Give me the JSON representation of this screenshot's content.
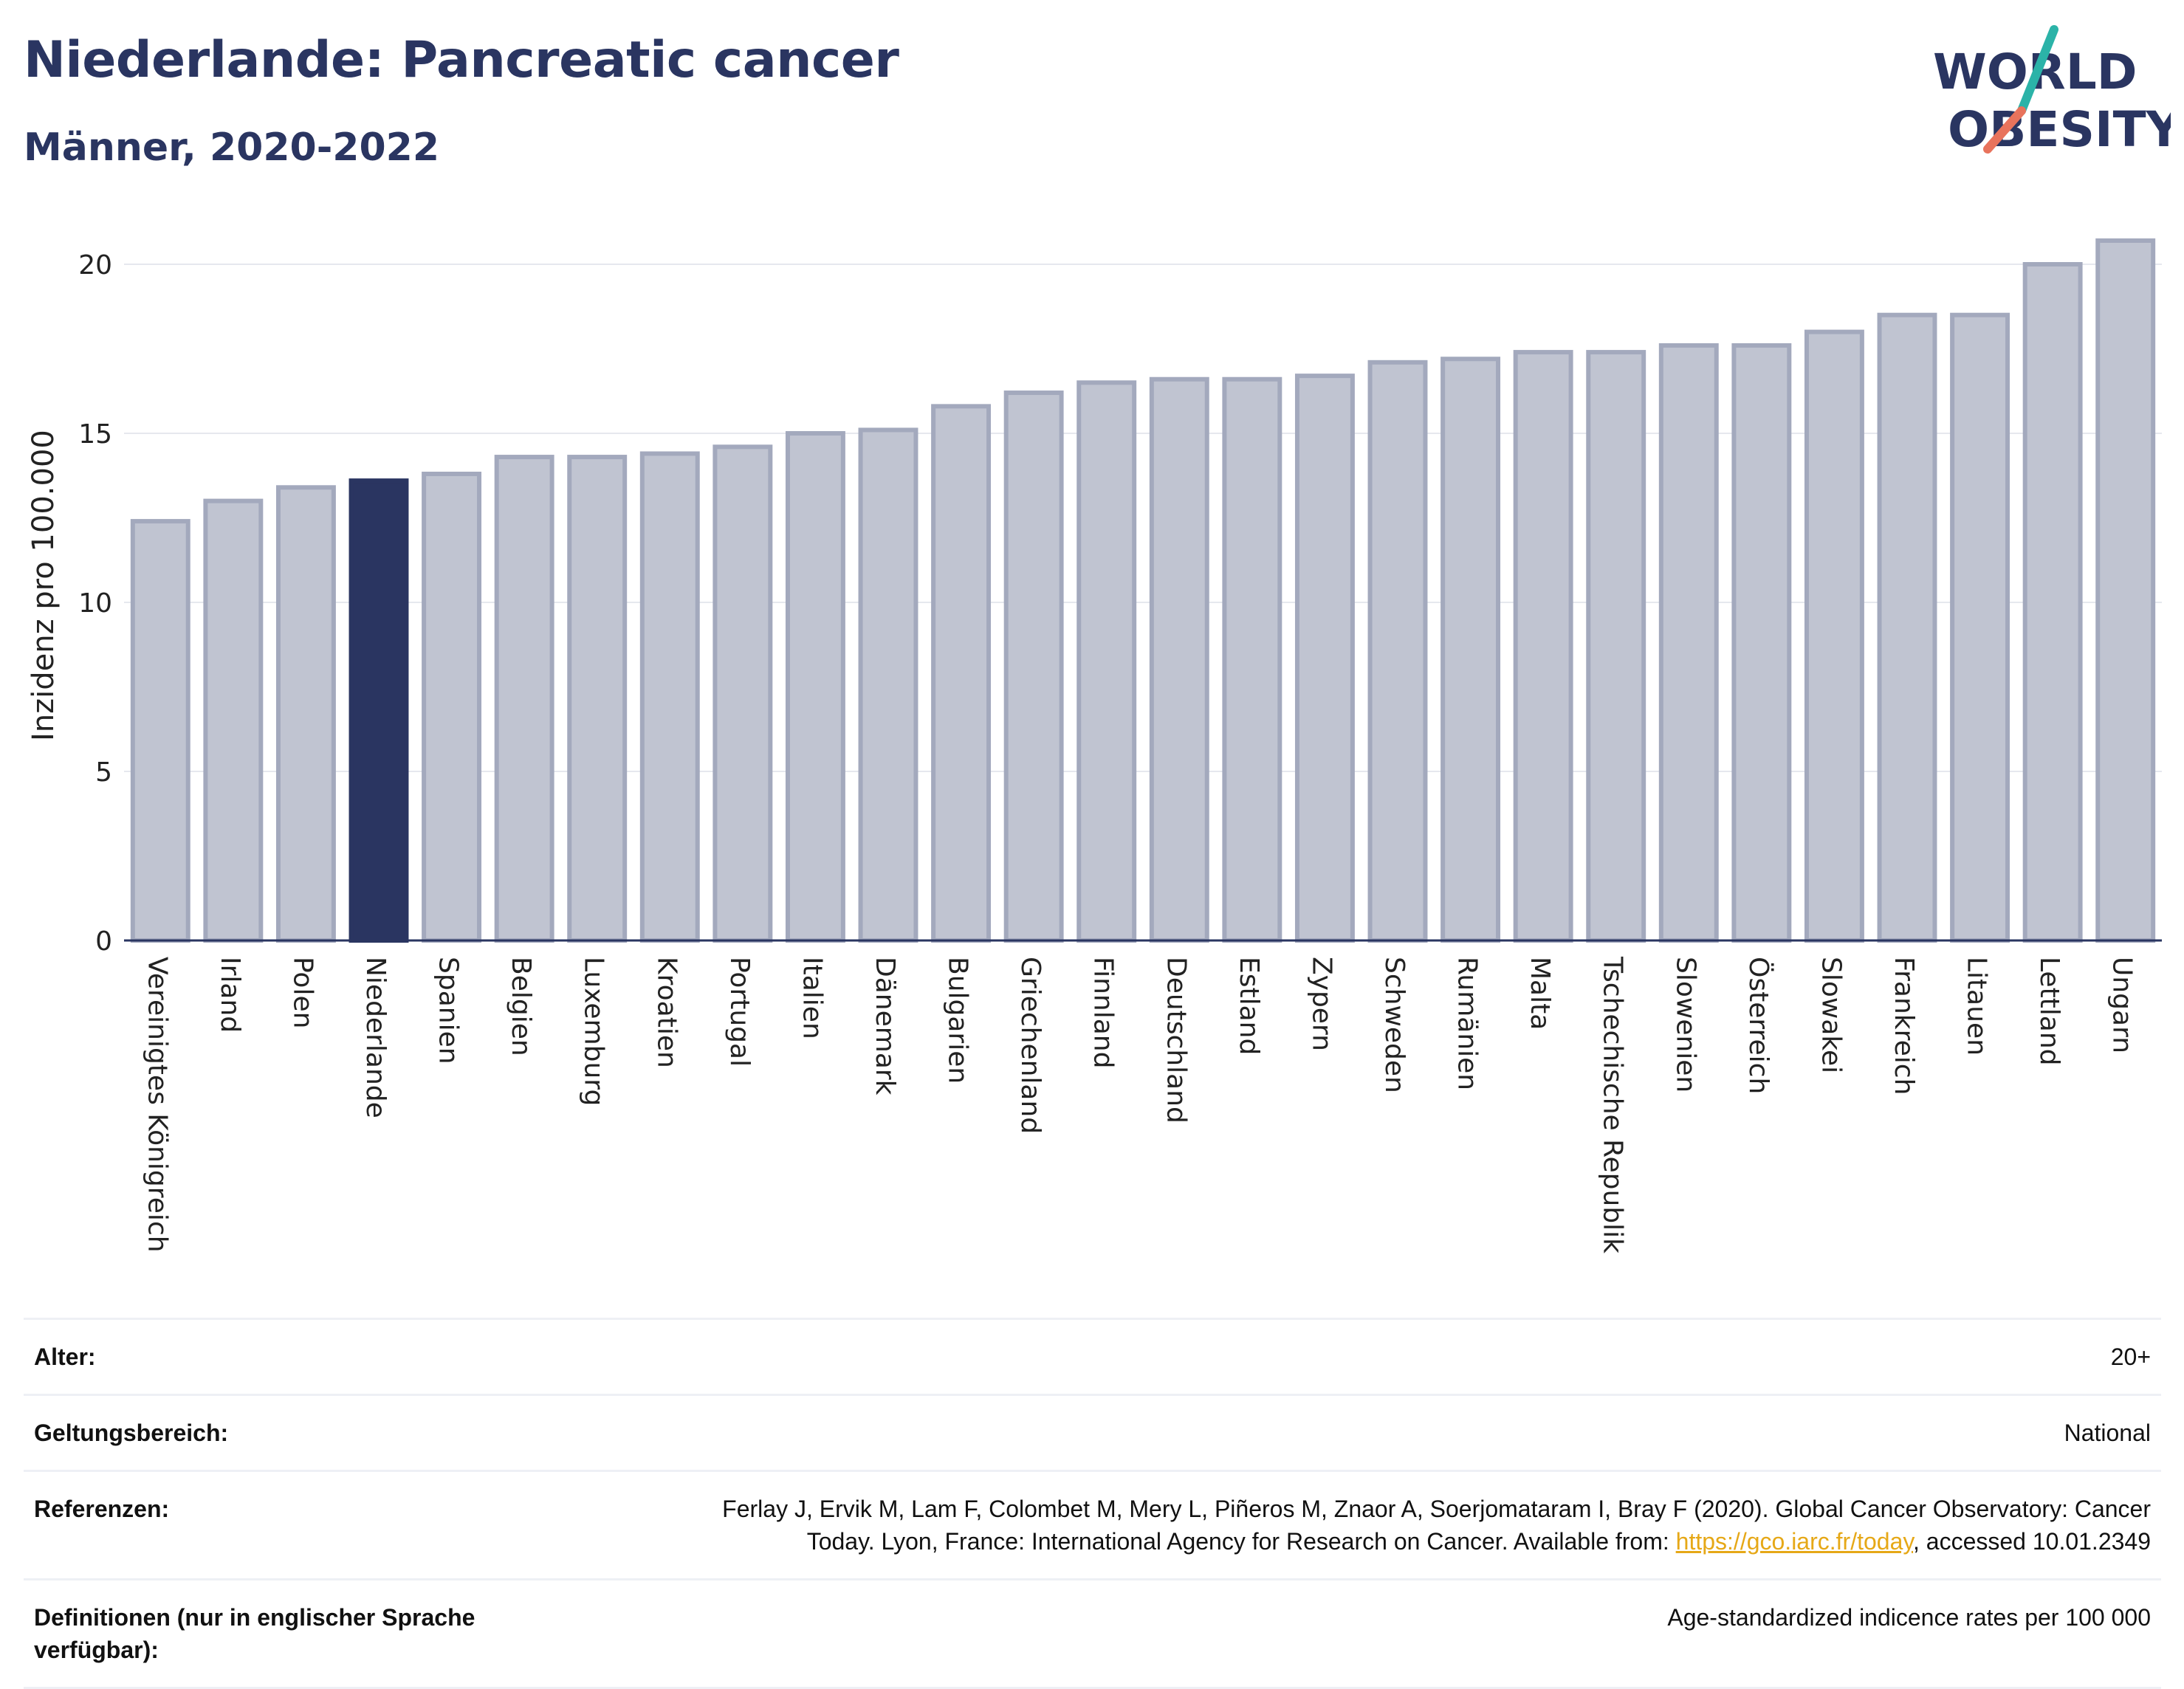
{
  "header": {
    "title": "Niederlande: Pancreatic cancer",
    "subtitle": "Männer, 2020-2022"
  },
  "logo": {
    "line1": "WORLD",
    "line2": "OBESITY",
    "accent_teal": "#2bb3a8",
    "accent_coral": "#e8735c"
  },
  "colors": {
    "bar_default": "#c0c4d1",
    "bar_default_stroke": "#a3a9bd",
    "bar_highlight": "#2a3561",
    "text": "#2a3561"
  },
  "chart_data": {
    "type": "bar",
    "title": "Niederlande: Pancreatic cancer",
    "subtitle": "Männer, 2020-2022",
    "xlabel": "",
    "ylabel": "Inzidenz pro 100.000",
    "ylim": [
      0,
      21
    ],
    "yticks": [
      0,
      5,
      10,
      15,
      20
    ],
    "grid": true,
    "highlight": "Niederlande",
    "categories": [
      "Vereinigtes Königreich",
      "Irland",
      "Polen",
      "Niederlande",
      "Spanien",
      "Belgien",
      "Luxemburg",
      "Kroatien",
      "Portugal",
      "Italien",
      "Dänemark",
      "Bulgarien",
      "Griechenland",
      "Finnland",
      "Deutschland",
      "Estland",
      "Zypern",
      "Schweden",
      "Rumänien",
      "Malta",
      "Tschechische Republik",
      "Slowenien",
      "Österreich",
      "Slowakei",
      "Frankreich",
      "Litauen",
      "Lettland",
      "Ungarn"
    ],
    "values": [
      12.4,
      13.0,
      13.4,
      13.6,
      13.8,
      14.3,
      14.3,
      14.4,
      14.6,
      15.0,
      15.1,
      15.8,
      16.2,
      16.5,
      16.6,
      16.6,
      16.7,
      17.1,
      17.2,
      17.4,
      17.4,
      17.6,
      17.6,
      18.0,
      18.5,
      18.5,
      20.0,
      20.7
    ]
  },
  "info": {
    "rows": [
      {
        "label": "Alter:",
        "value": "20+"
      },
      {
        "label": "Geltungsbereich:",
        "value": "National"
      },
      {
        "label": "Referenzen:",
        "value_line1": "Ferlay J, Ervik M, Lam F, Colombet M, Mery L, Piñeros M, Znaor A, Soerjomataram I, Bray F (2020). Global Cancer Observatory: Cancer",
        "value_line2_pre": "Today. Lyon, France: International Agency for Research on Cancer. Available from: ",
        "link": "https://gco.iarc.fr/today",
        "value_line2_post": ", accessed 10.01.2349"
      },
      {
        "label": "Definitionen (nur in englischer Sprache verfügbar):",
        "value": "Age-standardized indicence rates per 100 000"
      }
    ]
  }
}
